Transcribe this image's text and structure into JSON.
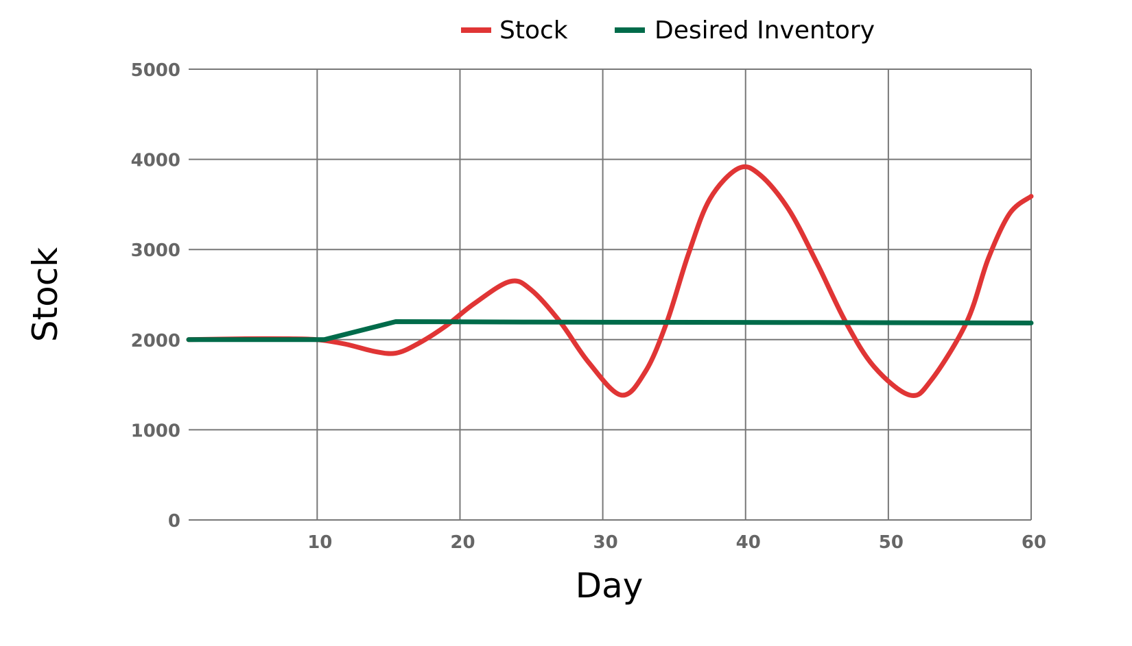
{
  "chart_data": {
    "type": "line",
    "title": "",
    "xlabel": "Day",
    "ylabel": "Stock",
    "xlim": [
      1,
      60
    ],
    "ylim": [
      0,
      5000
    ],
    "xticks": [
      10,
      20,
      30,
      40,
      50,
      60
    ],
    "yticks": [
      0,
      1000,
      2000,
      3000,
      4000,
      5000
    ],
    "grid": true,
    "legend_position": "top",
    "series": [
      {
        "name": "Stock",
        "color": "#e03535",
        "x": [
          1,
          5,
          8,
          10,
          12,
          14,
          15.5,
          17,
          19,
          21,
          23.5,
          25,
          27,
          29,
          31.3,
          33,
          34.5,
          36,
          37.5,
          39.5,
          41,
          43,
          45,
          47,
          49,
          51.5,
          53,
          55.5,
          57,
          58.5,
          60
        ],
        "y": [
          2000,
          2010,
          2010,
          2000,
          1950,
          1870,
          1850,
          1950,
          2150,
          2400,
          2645,
          2550,
          2200,
          1750,
          1385,
          1650,
          2200,
          2950,
          3560,
          3900,
          3830,
          3450,
          2850,
          2200,
          1700,
          1385,
          1550,
          2200,
          2900,
          3400,
          3590
        ]
      },
      {
        "name": "Desired Inventory",
        "color": "#006b4a",
        "x": [
          1,
          10.5,
          15.5,
          25,
          45,
          60
        ],
        "y": [
          2000,
          2000,
          2200,
          2195,
          2190,
          2185
        ]
      }
    ]
  }
}
